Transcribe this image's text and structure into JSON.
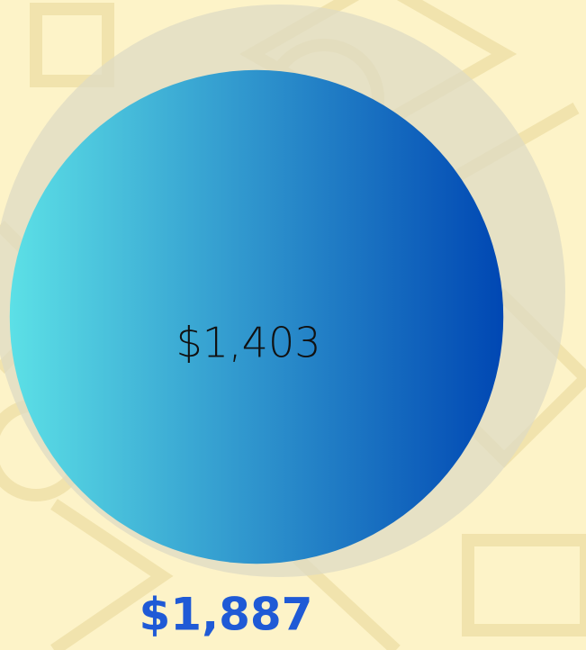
{
  "chart_data": {
    "type": "bubble",
    "values": [
      1403,
      1887
    ],
    "value_labels": [
      "$1,403",
      "$1,887"
    ],
    "colors": [
      "#0047b3",
      "#dedbc4"
    ],
    "gradient_start": "#5ce0e6",
    "label_colors": [
      "#111111",
      "#1f5ad6"
    ]
  }
}
